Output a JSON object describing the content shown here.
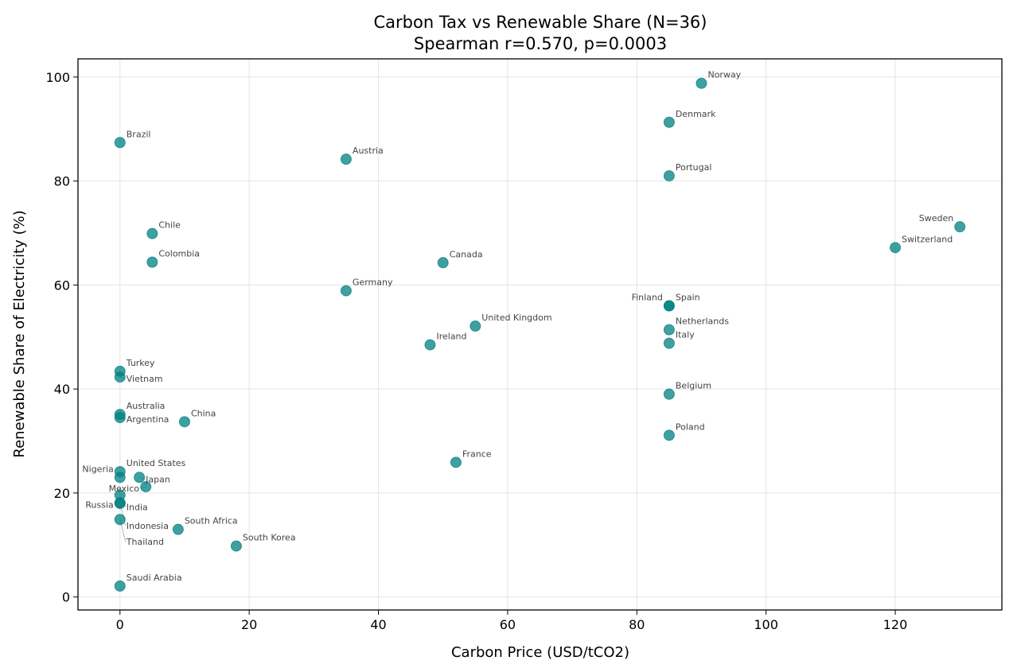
{
  "chart_data": {
    "type": "scatter",
    "title": "Carbon Tax vs Renewable Share (N=36)",
    "subtitle": "Spearman r=0.570, p=0.0003",
    "xlabel": "Carbon Price (USD/tCO2)",
    "ylabel": "Renewable Share of Electricity (%)",
    "xlim": [
      -6.5,
      136.5
    ],
    "ylim": [
      -2.5,
      103.5
    ],
    "xticks": [
      0,
      20,
      40,
      60,
      80,
      100,
      120
    ],
    "yticks": [
      0,
      20,
      40,
      60,
      80,
      100
    ],
    "grid": true,
    "color": "#008080",
    "points": [
      {
        "label": "Norway",
        "x": 90,
        "y": 98.8
      },
      {
        "label": "Denmark",
        "x": 85,
        "y": 91.3
      },
      {
        "label": "Brazil",
        "x": 0,
        "y": 87.4
      },
      {
        "label": "Austria",
        "x": 35,
        "y": 84.2
      },
      {
        "label": "Portugal",
        "x": 85,
        "y": 81.0
      },
      {
        "label": "Sweden",
        "x": 130,
        "y": 71.2
      },
      {
        "label": "Switzerland",
        "x": 120,
        "y": 67.2
      },
      {
        "label": "Chile",
        "x": 5,
        "y": 69.9
      },
      {
        "label": "Colombia",
        "x": 5,
        "y": 64.4
      },
      {
        "label": "Canada",
        "x": 50,
        "y": 64.3
      },
      {
        "label": "Germany",
        "x": 35,
        "y": 58.9
      },
      {
        "label": "Spain",
        "x": 85,
        "y": 56.0
      },
      {
        "label": "Finland",
        "x": 85,
        "y": 56.0
      },
      {
        "label": "United Kingdom",
        "x": 55,
        "y": 52.1
      },
      {
        "label": "Ireland",
        "x": 48,
        "y": 48.5
      },
      {
        "label": "Netherlands",
        "x": 85,
        "y": 51.4
      },
      {
        "label": "Italy",
        "x": 85,
        "y": 48.8
      },
      {
        "label": "Turkey",
        "x": 0,
        "y": 43.4
      },
      {
        "label": "Vietnam",
        "x": 0,
        "y": 42.3
      },
      {
        "label": "Belgium",
        "x": 85,
        "y": 39.0
      },
      {
        "label": "Australia",
        "x": 0,
        "y": 35.1
      },
      {
        "label": "Argentina",
        "x": 0,
        "y": 34.5
      },
      {
        "label": "China",
        "x": 10,
        "y": 33.7
      },
      {
        "label": "Poland",
        "x": 85,
        "y": 31.1
      },
      {
        "label": "France",
        "x": 52,
        "y": 25.9
      },
      {
        "label": "United States",
        "x": 0,
        "y": 24.1
      },
      {
        "label": "Nigeria",
        "x": 0,
        "y": 23.0
      },
      {
        "label": "Japan",
        "x": 3,
        "y": 23.0
      },
      {
        "label": "Mexico",
        "x": 4,
        "y": 21.2
      },
      {
        "label": "India",
        "x": 0,
        "y": 19.6
      },
      {
        "label": "Russia",
        "x": 0,
        "y": 18.1
      },
      {
        "label": "Indonesia",
        "x": 0,
        "y": 18.0
      },
      {
        "label": "Thailand",
        "x": 0,
        "y": 14.9
      },
      {
        "label": "South Africa",
        "x": 9,
        "y": 13.0
      },
      {
        "label": "South Korea",
        "x": 18,
        "y": 9.8
      },
      {
        "label": "Saudi Arabia",
        "x": 0,
        "y": 2.1
      }
    ]
  }
}
